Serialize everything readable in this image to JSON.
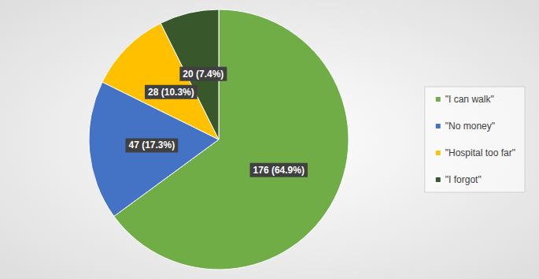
{
  "chart_data": {
    "type": "pie",
    "categories": [
      "\"I can walk\"",
      "\"No money\"",
      "\"Hospital too far\"",
      "\"I forgot\""
    ],
    "values": [
      176,
      47,
      28,
      20
    ],
    "value_labels": [
      "176 (64.9%)",
      "47 (17.3%)",
      "28 (10.3%)",
      "20 (7.4%)"
    ],
    "colors": [
      "#70ad47",
      "#4472c4",
      "#ffc000",
      "#38572a"
    ],
    "data_labels": true,
    "legend": "right"
  }
}
